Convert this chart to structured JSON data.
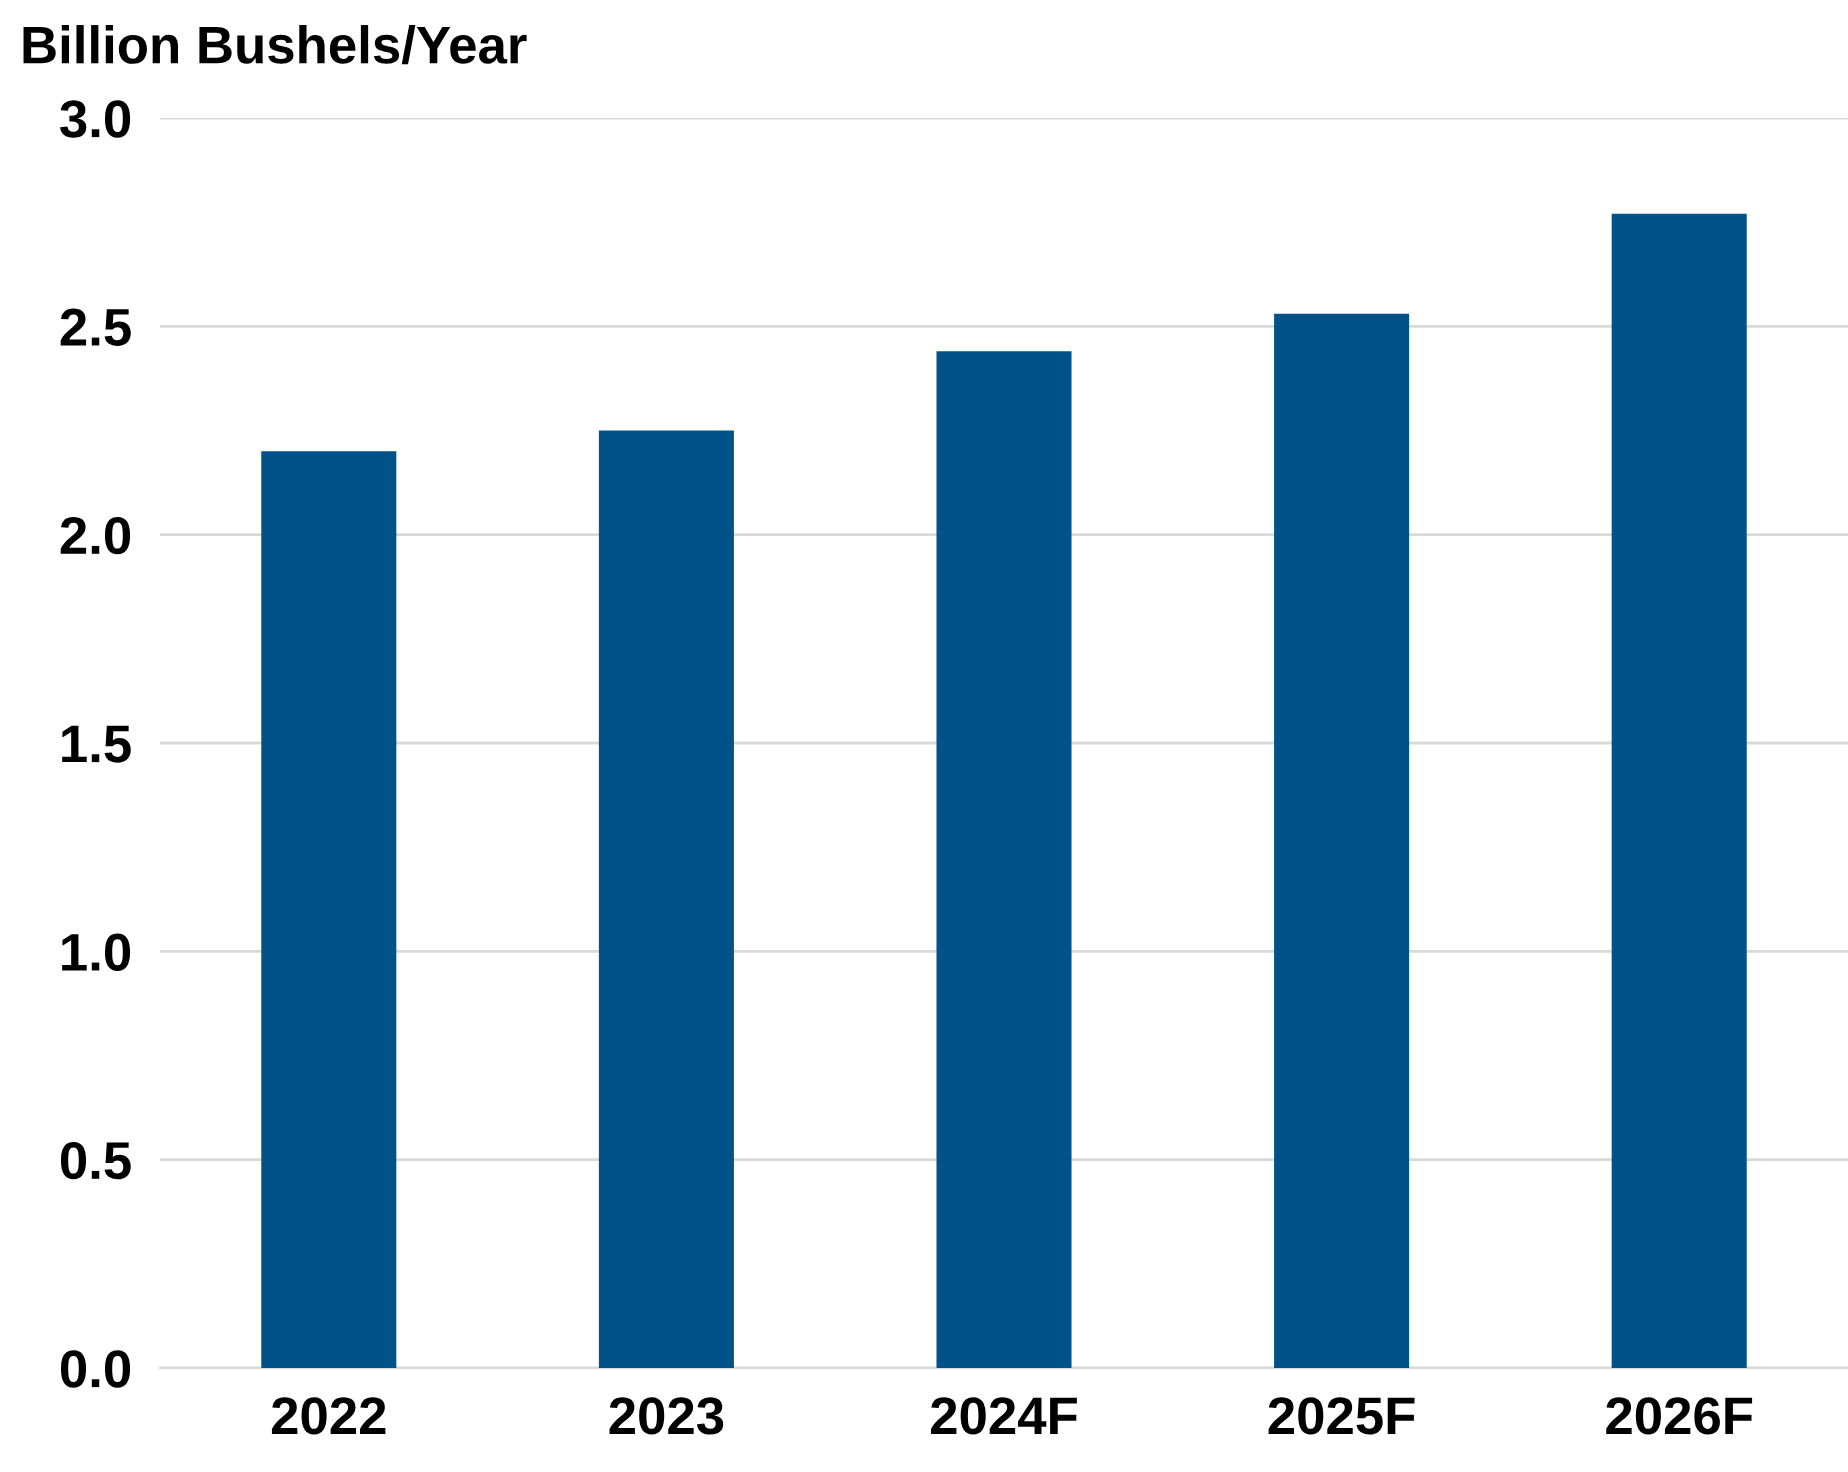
{
  "chart_data": {
    "type": "bar",
    "ylabel": "Billion Bushels/Year",
    "categories": [
      "2022",
      "2023",
      "2024F",
      "2025F",
      "2026F"
    ],
    "values": [
      2.2,
      2.25,
      2.44,
      2.53,
      2.77
    ],
    "color": "#005288",
    "ylim": [
      0,
      3.0
    ],
    "yticks": [
      {
        "value": 0,
        "label": "0.0"
      },
      {
        "value": 0.5,
        "label": "0.5"
      },
      {
        "value": 1.0,
        "label": "1.0"
      },
      {
        "value": 1.5,
        "label": "1.5"
      },
      {
        "value": 2.0,
        "label": "2.0"
      },
      {
        "value": 2.5,
        "label": "2.5"
      },
      {
        "value": 3.0,
        "label": "3.0"
      }
    ],
    "grid": "y",
    "legend": false
  }
}
